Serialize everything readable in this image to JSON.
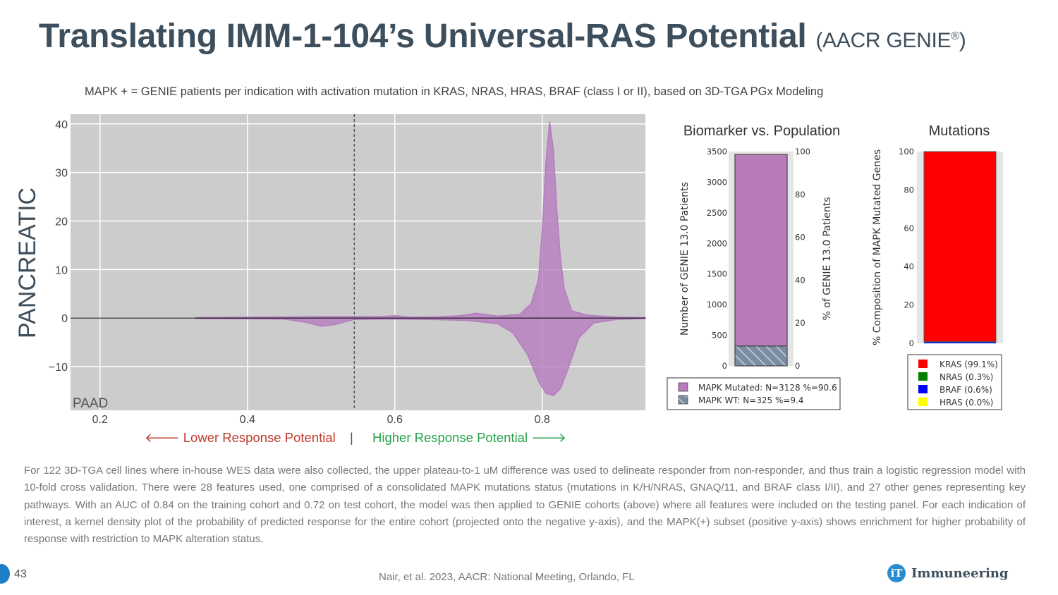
{
  "slide": {
    "title_main": "Translating IMM-1-104’s Universal-RAS Potential",
    "title_sub": "(AACR GENIE",
    "title_reg": "®",
    "title_close": ")",
    "subtitle": "MAPK + = GENIE patients per indication with activation mutation in KRAS, NRAS, HRAS, BRAF (class I or II), based on 3D-TGA PGx Modeling",
    "side_label": "PANCREATIC",
    "lower_response": "🡐 Lower Response Potential",
    "divider": "|",
    "higher_response": "Higher Response Potential 🡒",
    "description": "For 122 3D-TGA cell lines where in-house WES data were also collected, the upper plateau-to-1 uM difference was used to delineate responder from non-responder, and thus train a logistic regression model with 10-fold cross validation. There were 28 features used, one comprised of a consolidated MAPK mutations status (mutations in K/H/NRAS, GNAQ/11, and BRAF class I/II), and 27 other genes representing key pathways. With an AUC of 0.84 on the training cohort and 0.72 on test cohort, the model was then applied to GENIE cohorts (above) where all features were included on the testing panel. For each indication of interest, a kernel density plot of the probability of predicted response for the entire cohort (projected onto the negative y-axis), and the MAPK(+) subset (positive y-axis) shows enrichment for higher probability of response with restriction to MAPK alteration status.",
    "page_number": "43",
    "citation": "Nair, et al. 2023, AACR: National Meeting, Orlando, FL",
    "logo_mark": "iT",
    "logo_name": "Immuneering",
    "colors": {
      "title": "#3d4e5c",
      "lower": "#c0392b",
      "higher": "#27a24a",
      "accent": "#1f7fc4"
    }
  },
  "chart_data": [
    {
      "type": "area",
      "panel_label": "PAAD",
      "xlim": [
        0.16,
        0.94
      ],
      "ylim": [
        -19,
        42
      ],
      "xticks": [
        0.2,
        0.4,
        0.6,
        0.8
      ],
      "xtick_labels": [
        "0.2",
        "0.4",
        "0.6",
        "0.8"
      ],
      "yticks": [
        -10,
        0,
        10,
        20,
        30,
        40
      ],
      "ytick_labels": [
        "−10",
        "0",
        "10",
        "20",
        "30",
        "40"
      ],
      "threshold_x": 0.545,
      "grid": true,
      "fill_color": "#b57cbf",
      "positive_series": {
        "x": [
          0.33,
          0.42,
          0.5,
          0.55,
          0.58,
          0.6,
          0.62,
          0.65,
          0.69,
          0.71,
          0.74,
          0.77,
          0.785,
          0.795,
          0.8,
          0.805,
          0.81,
          0.815,
          0.82,
          0.825,
          0.83,
          0.84,
          0.86,
          0.9,
          0.94
        ],
        "y": [
          0.1,
          0.2,
          0.3,
          0.3,
          0.3,
          0.5,
          0.2,
          0.2,
          0.5,
          1.0,
          0.4,
          0.8,
          3.0,
          8.0,
          18.0,
          32.0,
          40.5,
          35.0,
          22.0,
          12.0,
          6.0,
          1.5,
          0.6,
          0.2,
          0.1
        ]
      },
      "negative_series": {
        "x": [
          0.33,
          0.45,
          0.48,
          0.5,
          0.52,
          0.545,
          0.6,
          0.65,
          0.7,
          0.74,
          0.76,
          0.78,
          0.795,
          0.805,
          0.815,
          0.825,
          0.835,
          0.85,
          0.87,
          0.9,
          0.94
        ],
        "y": [
          -0.1,
          -0.2,
          -0.9,
          -1.7,
          -1.3,
          -0.3,
          -0.2,
          -0.3,
          -0.5,
          -1.2,
          -3.0,
          -7.5,
          -13.0,
          -15.5,
          -16.0,
          -14.5,
          -10.5,
          -4.0,
          -1.0,
          -0.3,
          -0.1
        ]
      }
    },
    {
      "type": "bar",
      "title": "Biomarker vs. Population",
      "ylabel": "Number of GENIE 13.0 Patients",
      "ylabel_right": "% of GENIE 13.0 Patients",
      "ylim": [
        0,
        3500
      ],
      "yticks": [
        0,
        500,
        1000,
        1500,
        2000,
        2500,
        3000,
        3500
      ],
      "ylim_right": [
        0,
        100
      ],
      "yticks_right": [
        0,
        20,
        40,
        60,
        80,
        100
      ],
      "stack": [
        {
          "name": "MAPK WT: N=325 %=9.4",
          "value": 325,
          "color": "#7a8da3",
          "hatch": true
        },
        {
          "name": "MAPK Mutated: N=3128 %=90.6",
          "value": 3128,
          "color": "#b87bba"
        }
      ],
      "legend_order": [
        "MAPK Mutated: N=3128 %=90.6",
        "MAPK WT: N=325 %=9.4"
      ]
    },
    {
      "type": "bar",
      "title": "Mutations",
      "ylabel": "% Composition of MAPK Mutated Genes",
      "ylim": [
        0,
        100
      ],
      "yticks": [
        0,
        20,
        40,
        60,
        80,
        100
      ],
      "stack": [
        {
          "name": "HRAS (0.0%)",
          "value": 0.0,
          "color": "#ffff00"
        },
        {
          "name": "BRAF (0.6%)",
          "value": 0.6,
          "color": "#0000ff"
        },
        {
          "name": "NRAS (0.3%)",
          "value": 0.3,
          "color": "#008000"
        },
        {
          "name": "KRAS (99.1%)",
          "value": 99.1,
          "color": "#ff0000"
        }
      ],
      "legend_order": [
        "KRAS (99.1%)",
        "NRAS (0.3%)",
        "BRAF (0.6%)",
        "HRAS (0.0%)"
      ]
    }
  ]
}
